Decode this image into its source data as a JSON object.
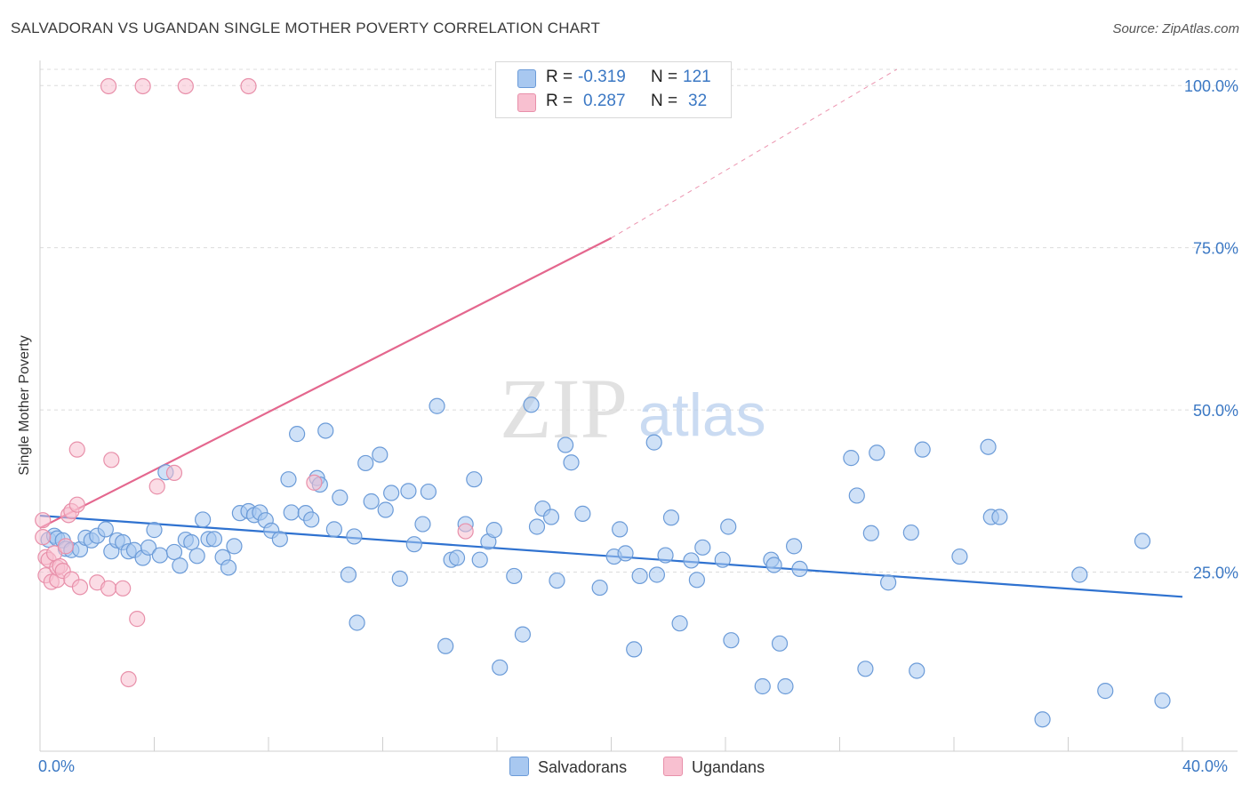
{
  "title": "SALVADORAN VS UGANDAN SINGLE MOTHER POVERTY CORRELATION CHART",
  "source": "Source: ZipAtlas.com",
  "watermark": {
    "zip": "ZIP",
    "atlas": "atlas"
  },
  "legend": {
    "r_label": "R =",
    "n_label": "N =",
    "rows": [
      {
        "r": "-0.319",
        "n": "121",
        "color": "#a8c8f0",
        "border": "#6b9bd8"
      },
      {
        "r": "0.287",
        "n": "32",
        "color": "#f8c0d0",
        "border": "#e890aa"
      }
    ]
  },
  "bottom_legend": [
    {
      "label": "Salvadorans",
      "color": "#a8c8f0",
      "border": "#6b9bd8"
    },
    {
      "label": "Ugandans",
      "color": "#f8c0d0",
      "border": "#e890aa"
    }
  ],
  "chart_data": {
    "type": "scatter",
    "title": "SALVADORAN VS UGANDAN SINGLE MOTHER POVERTY CORRELATION CHART",
    "xlabel": "",
    "ylabel": "Single Mother Poverty",
    "xlim": [
      0,
      40
    ],
    "ylim": [
      0,
      102.5
    ],
    "x_tick_labels": [
      "0.0%",
      "40.0%"
    ],
    "y_ticks": [
      25,
      50,
      75,
      100
    ],
    "y_tick_labels": [
      "25.0%",
      "50.0%",
      "75.0%",
      "100.0%"
    ],
    "series": [
      {
        "name": "Salvadorans",
        "color": "#6b9bd8",
        "fill": "#a8c8f0",
        "trend": {
          "x0": 0,
          "y0": 33.7,
          "x1": 40,
          "y1": 21.2,
          "color": "#2f72d0"
        },
        "points": [
          [
            0.3,
            30.0
          ],
          [
            0.5,
            30.6
          ],
          [
            0.6,
            30.2
          ],
          [
            0.8,
            29.9
          ],
          [
            0.9,
            28.6
          ],
          [
            1.1,
            28.4
          ],
          [
            1.4,
            28.5
          ],
          [
            1.6,
            30.3
          ],
          [
            1.8,
            29.9
          ],
          [
            2.0,
            30.6
          ],
          [
            2.3,
            31.6
          ],
          [
            2.5,
            28.2
          ],
          [
            2.7,
            29.9
          ],
          [
            2.9,
            29.6
          ],
          [
            3.1,
            28.2
          ],
          [
            3.3,
            28.4
          ],
          [
            3.6,
            27.2
          ],
          [
            3.8,
            28.8
          ],
          [
            4.0,
            31.5
          ],
          [
            4.2,
            27.6
          ],
          [
            4.4,
            40.4
          ],
          [
            4.7,
            28.1
          ],
          [
            4.9,
            26.0
          ],
          [
            5.1,
            30.0
          ],
          [
            5.3,
            29.6
          ],
          [
            5.5,
            27.5
          ],
          [
            5.7,
            33.1
          ],
          [
            5.9,
            30.1
          ],
          [
            6.1,
            30.1
          ],
          [
            6.4,
            27.3
          ],
          [
            6.6,
            25.7
          ],
          [
            6.8,
            29.0
          ],
          [
            7.0,
            34.1
          ],
          [
            7.3,
            34.4
          ],
          [
            7.5,
            33.8
          ],
          [
            7.7,
            34.2
          ],
          [
            7.9,
            33.0
          ],
          [
            8.1,
            31.4
          ],
          [
            8.4,
            30.1
          ],
          [
            8.7,
            39.3
          ],
          [
            8.8,
            34.2
          ],
          [
            9.0,
            46.3
          ],
          [
            9.3,
            34.1
          ],
          [
            9.5,
            33.1
          ],
          [
            9.7,
            39.5
          ],
          [
            9.8,
            38.5
          ],
          [
            10.0,
            46.8
          ],
          [
            10.3,
            31.6
          ],
          [
            10.5,
            36.5
          ],
          [
            10.8,
            24.6
          ],
          [
            11.0,
            30.5
          ],
          [
            11.1,
            17.2
          ],
          [
            11.4,
            41.8
          ],
          [
            11.6,
            35.9
          ],
          [
            11.9,
            43.1
          ],
          [
            12.1,
            34.6
          ],
          [
            12.3,
            37.2
          ],
          [
            12.6,
            24.0
          ],
          [
            12.9,
            37.5
          ],
          [
            13.1,
            29.3
          ],
          [
            13.4,
            32.4
          ],
          [
            13.6,
            37.4
          ],
          [
            13.9,
            50.6
          ],
          [
            14.2,
            13.6
          ],
          [
            14.4,
            26.9
          ],
          [
            14.6,
            27.2
          ],
          [
            14.9,
            32.4
          ],
          [
            15.2,
            39.3
          ],
          [
            15.4,
            26.9
          ],
          [
            15.7,
            29.7
          ],
          [
            15.9,
            31.5
          ],
          [
            16.1,
            10.3
          ],
          [
            16.6,
            24.4
          ],
          [
            16.9,
            15.4
          ],
          [
            17.2,
            50.8
          ],
          [
            17.4,
            32.0
          ],
          [
            17.6,
            34.8
          ],
          [
            17.9,
            33.5
          ],
          [
            18.1,
            23.7
          ],
          [
            18.4,
            44.6
          ],
          [
            18.6,
            41.9
          ],
          [
            19.0,
            34.0
          ],
          [
            19.6,
            22.6
          ],
          [
            20.1,
            27.4
          ],
          [
            20.3,
            31.6
          ],
          [
            20.5,
            27.9
          ],
          [
            20.8,
            13.1
          ],
          [
            21.0,
            24.4
          ],
          [
            21.5,
            45.0
          ],
          [
            21.6,
            24.6
          ],
          [
            21.9,
            27.6
          ],
          [
            22.1,
            33.4
          ],
          [
            22.4,
            17.1
          ],
          [
            22.8,
            26.8
          ],
          [
            23.0,
            23.8
          ],
          [
            23.2,
            28.8
          ],
          [
            23.9,
            26.9
          ],
          [
            24.1,
            32.0
          ],
          [
            24.2,
            14.5
          ],
          [
            25.3,
            7.4
          ],
          [
            25.6,
            26.9
          ],
          [
            25.7,
            26.1
          ],
          [
            25.9,
            14.0
          ],
          [
            26.1,
            7.4
          ],
          [
            26.4,
            29.0
          ],
          [
            26.6,
            25.5
          ],
          [
            28.4,
            42.6
          ],
          [
            28.6,
            36.8
          ],
          [
            28.9,
            10.1
          ],
          [
            29.1,
            31.0
          ],
          [
            29.3,
            43.4
          ],
          [
            29.7,
            23.4
          ],
          [
            30.5,
            31.1
          ],
          [
            30.7,
            9.8
          ],
          [
            30.9,
            43.9
          ],
          [
            32.2,
            27.4
          ],
          [
            33.3,
            33.5
          ],
          [
            33.2,
            44.3
          ],
          [
            33.6,
            33.5
          ],
          [
            35.1,
            2.3
          ],
          [
            36.4,
            24.6
          ],
          [
            37.3,
            6.7
          ],
          [
            38.6,
            29.8
          ],
          [
            39.3,
            5.2
          ]
        ]
      },
      {
        "name": "Ugandans",
        "color": "#e890aa",
        "fill": "#f8c0d0",
        "trend": {
          "x0": 0,
          "y0": 31.8,
          "x1": 20.0,
          "y1": 76.5,
          "x_dash_end": 30.0,
          "y_dash_end": 102.5,
          "color": "#e4678e"
        },
        "points": [
          [
            0.1,
            30.4
          ],
          [
            0.1,
            33.0
          ],
          [
            0.2,
            27.3
          ],
          [
            0.2,
            24.5
          ],
          [
            0.3,
            26.9
          ],
          [
            0.4,
            23.5
          ],
          [
            0.5,
            27.9
          ],
          [
            0.6,
            23.8
          ],
          [
            0.6,
            25.7
          ],
          [
            0.7,
            25.9
          ],
          [
            0.8,
            25.2
          ],
          [
            0.9,
            29.0
          ],
          [
            1.0,
            33.8
          ],
          [
            1.1,
            34.4
          ],
          [
            1.1,
            23.9
          ],
          [
            1.3,
            43.9
          ],
          [
            1.4,
            22.7
          ],
          [
            2.0,
            23.4
          ],
          [
            2.4,
            22.5
          ],
          [
            2.5,
            42.3
          ],
          [
            2.9,
            22.5
          ],
          [
            3.1,
            8.5
          ],
          [
            3.4,
            17.8
          ],
          [
            4.1,
            38.2
          ],
          [
            4.7,
            40.3
          ],
          [
            9.6,
            38.8
          ],
          [
            14.9,
            31.3
          ],
          [
            1.3,
            35.4
          ],
          [
            2.4,
            99.9
          ],
          [
            3.6,
            99.9
          ],
          [
            5.1,
            99.9
          ],
          [
            7.3,
            99.9
          ]
        ]
      }
    ]
  }
}
